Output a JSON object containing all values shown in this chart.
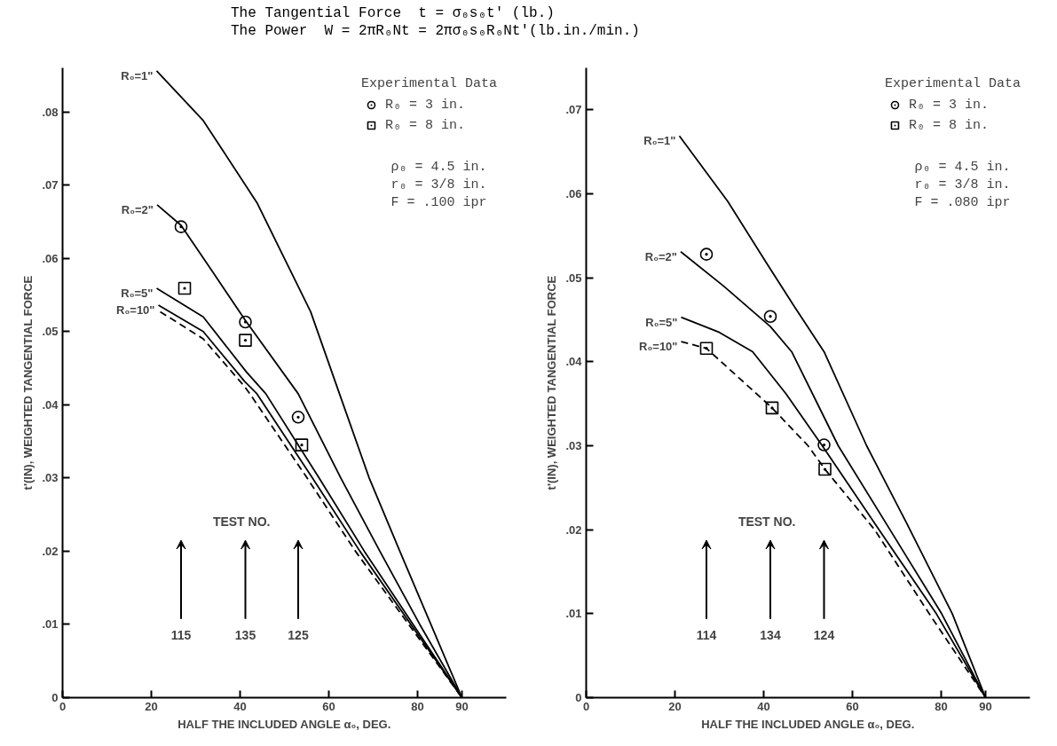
{
  "chart_data": [
    {
      "type": "line",
      "title": "The Tangential Force  t = σ₀s₀t' (lb.)",
      "subtitle": "The Power  W = 2πR₀Nt = 2πσ₀s₀R₀Nt'(lb.in./min.)",
      "xlabel": "HALF THE INCLUDED ANGLE α₀, DEG.",
      "ylabel": "t'(IN), WEIGHTED TANGENTIAL FORCE",
      "legend_title": "Experimental Data",
      "legend": "top right",
      "xlim": [
        0,
        100
      ],
      "ylim": [
        0,
        0.086
      ],
      "xticks": [
        0,
        20,
        40,
        60,
        80,
        90
      ],
      "yticks": [
        0,
        {
          "value": 0.01,
          "label": ".01"
        },
        {
          "value": 0.02,
          "label": ".02"
        },
        {
          "value": 0.03,
          "label": ".03"
        },
        {
          "value": 0.04,
          "label": ".04"
        },
        {
          "value": 0.05,
          "label": ".05"
        },
        {
          "value": 0.06,
          "label": ".06"
        },
        {
          "value": 0.07,
          "label": ".07"
        },
        {
          "value": 0.08,
          "label": ".08"
        }
      ],
      "series": [
        {
          "name": "R₀=1\"",
          "color": "#000000",
          "line_style": "solid",
          "x": [
            21.2,
            31.7,
            43.8,
            55.9,
            62.4,
            69.1,
            76,
            83,
            90
          ],
          "values": [
            0.0856,
            0.0788,
            0.0676,
            0.0527,
            0.0415,
            0.03,
            0.02,
            0.01,
            0
          ]
        },
        {
          "name": "R₀=2\"",
          "color": "#000000",
          "line_style": "solid",
          "x": [
            21.3,
            26.7,
            34,
            41.2,
            53.1,
            62.7,
            71.5,
            80.5,
            90
          ],
          "values": [
            0.0673,
            0.0645,
            0.058,
            0.0515,
            0.0415,
            0.03,
            0.02,
            0.01,
            0
          ]
        },
        {
          "name": "R₀=5\"",
          "color": "#000000",
          "line_style": "solid",
          "x": [
            21.2,
            31.7,
            41.4,
            45.8,
            57.8,
            68,
            79,
            90
          ],
          "values": [
            0.0559,
            0.052,
            0.0445,
            0.0415,
            0.03,
            0.02,
            0.01,
            0
          ]
        },
        {
          "name": "R₀=10\"",
          "color": "#000000",
          "line_style": "solid",
          "x": [
            21.6,
            31.7,
            41,
            43.8,
            56.3,
            67,
            78.5,
            90
          ],
          "values": [
            0.0536,
            0.05,
            0.0432,
            0.0415,
            0.03,
            0.02,
            0.01,
            0
          ]
        },
        {
          "color": "#000000",
          "line_style": "dashed",
          "x": [
            22,
            31.7,
            41,
            42.2,
            55.1,
            66,
            78,
            90
          ],
          "values": [
            0.0527,
            0.049,
            0.0425,
            0.0415,
            0.03,
            0.02,
            0.01,
            0
          ]
        },
        {
          "name": "R₀ = 3 in.",
          "type": "scatter",
          "marker": "circle",
          "color": "#000000",
          "x": [
            26.7,
            41.2,
            53.1
          ],
          "values": [
            0.0643,
            0.0513,
            0.0383
          ]
        },
        {
          "name": "R₀ = 8 in.",
          "type": "scatter",
          "marker": "square",
          "color": "#000000",
          "x": [
            27.5,
            41.2,
            53.9
          ],
          "values": [
            0.0559,
            0.0488,
            0.0345
          ]
        }
      ],
      "annotations": [
        "ρ₀ = 4.5 in.",
        "r₀ = 3/8 in.",
        "F = .100 ipr",
        "TEST NO.",
        "115",
        "135",
        "125"
      ]
    },
    {
      "type": "line",
      "xlabel": "HALF THE INCLUDED ANGLE α₀, DEG.",
      "ylabel": "t'(IN), WEIGHTED TANGENTIAL FORCE",
      "legend_title": "Experimental Data",
      "legend": "top right",
      "xlim": [
        0,
        100
      ],
      "ylim": [
        0,
        0.075
      ],
      "xticks": [
        0,
        20,
        40,
        60,
        80,
        90
      ],
      "yticks": [
        0,
        {
          "value": 0.01,
          "label": ".01"
        },
        {
          "value": 0.02,
          "label": ".02"
        },
        {
          "value": 0.03,
          "label": ".03"
        },
        {
          "value": 0.04,
          "label": ".04"
        },
        {
          "value": 0.05,
          "label": ".05"
        },
        {
          "value": 0.06,
          "label": ".06"
        },
        {
          "value": 0.07,
          "label": ".07"
        }
      ],
      "series": [
        {
          "name": "R₀=1\"",
          "color": "#000000",
          "line_style": "solid",
          "x": [
            21,
            31.9,
            40.7,
            47,
            53.6,
            63.2,
            72,
            82.5,
            90
          ],
          "values": [
            0.0669,
            0.0591,
            0.0517,
            0.0465,
            0.0412,
            0.03,
            0.021,
            0.01,
            0
          ]
        },
        {
          "name": "R₀=2\"",
          "color": "#000000",
          "line_style": "solid",
          "x": [
            21.3,
            31,
            41.5,
            46.3,
            56.8,
            68,
            80.1,
            90
          ],
          "values": [
            0.0531,
            0.049,
            0.0442,
            0.0412,
            0.03,
            0.0204,
            0.01,
            0
          ]
        },
        {
          "name": "R₀=5\"",
          "color": "#000000",
          "line_style": "solid",
          "x": [
            21.4,
            30,
            37.5,
            45,
            53.2,
            66,
            78.9,
            90
          ],
          "values": [
            0.0453,
            0.0435,
            0.0412,
            0.0362,
            0.03,
            0.02,
            0.01,
            0
          ]
        },
        {
          "name": "R₀=10\"",
          "color": "#000000",
          "line_style": "dashed",
          "x": [
            21.4,
            27.1,
            41.9,
            50,
            53.8,
            65,
            77.3,
            90
          ],
          "values": [
            0.0424,
            0.0416,
            0.0345,
            0.03,
            0.0272,
            0.02,
            0.01,
            0
          ]
        },
        {
          "name": "R₀ = 3 in.",
          "type": "scatter",
          "marker": "circle",
          "color": "#000000",
          "x": [
            27.1,
            41.5,
            53.6
          ],
          "values": [
            0.0528,
            0.0454,
            0.0301
          ]
        },
        {
          "name": "R₀ = 8 in.",
          "type": "scatter",
          "marker": "square",
          "color": "#000000",
          "x": [
            27.1,
            41.9,
            53.8
          ],
          "values": [
            0.0416,
            0.0345,
            0.0272
          ]
        }
      ],
      "annotations": [
        "ρ₀ = 4.5 in.",
        "r₀ = 3/8 in.",
        "F = .080 ipr",
        "TEST NO.",
        "114",
        "134",
        "124"
      ]
    }
  ]
}
